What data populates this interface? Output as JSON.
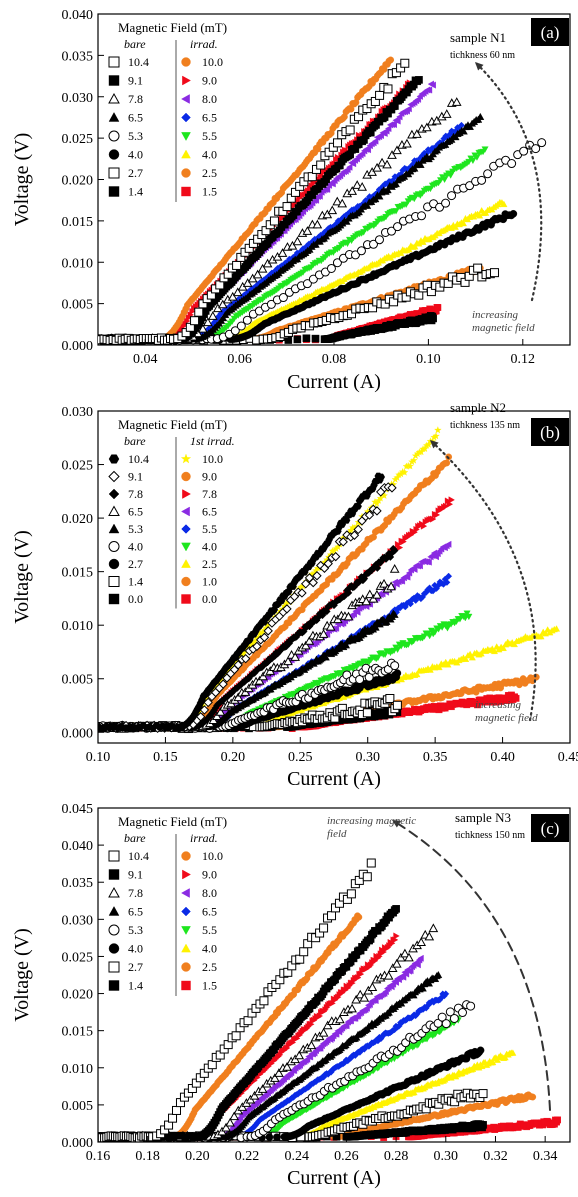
{
  "colors": {
    "orange": "#f07f1e",
    "red": "#f00a1a",
    "purple": "#8a2be2",
    "blue": "#0a2ae6",
    "green": "#1ee61e",
    "yellow": "#fff200",
    "black": "#000000"
  },
  "chart_data": [
    {
      "type": "scatter",
      "panel_label": "(a)",
      "sample": "sample N1",
      "thickness": "tichkness 60 nm",
      "annotation": "increasing\nmagnetic field",
      "xlabel": "Current (A)",
      "ylabel": "Voltage (V)",
      "xlim": [
        0.03,
        0.13
      ],
      "ylim": [
        0.0,
        0.04
      ],
      "xticks": [
        "0.04",
        "0.06",
        "0.08",
        "0.10",
        "0.12"
      ],
      "yticks": [
        "0.000",
        "0.005",
        "0.010",
        "0.015",
        "0.020",
        "0.025",
        "0.030",
        "0.035",
        "0.040"
      ],
      "legend_title": "Magnetic Field (mT)",
      "legend_col1_title": "bare",
      "legend_col2_title": "irrad.",
      "legend_position": "top-left",
      "series": [
        {
          "name": "10.4",
          "group": "bare",
          "marker": "open-square",
          "x0": 0.046,
          "x1": 0.095,
          "y1": 0.034
        },
        {
          "name": "9.1",
          "group": "bare",
          "marker": "filled-square",
          "x0": 0.047,
          "x1": 0.098,
          "y1": 0.0322
        },
        {
          "name": "7.8",
          "group": "bare",
          "marker": "open-triangle",
          "x0": 0.048,
          "x1": 0.106,
          "y1": 0.0295
        },
        {
          "name": "6.5",
          "group": "bare",
          "marker": "filled-triangle",
          "x0": 0.05,
          "x1": 0.111,
          "y1": 0.0275
        },
        {
          "name": "5.3",
          "group": "bare",
          "marker": "open-circle",
          "x0": 0.054,
          "x1": 0.124,
          "y1": 0.0245
        },
        {
          "name": "4.0",
          "group": "bare",
          "marker": "filled-circle",
          "x0": 0.058,
          "x1": 0.118,
          "y1": 0.016
        },
        {
          "name": "2.7",
          "group": "bare",
          "marker": "open-square",
          "x0": 0.065,
          "x1": 0.114,
          "y1": 0.0093
        },
        {
          "name": "1.4",
          "group": "bare",
          "marker": "filled-square",
          "x0": 0.078,
          "x1": 0.101,
          "y1": 0.0033
        },
        {
          "name": "10.0",
          "group": "irrad.",
          "marker": "circle",
          "color": "orange",
          "x0": 0.043,
          "x1": 0.092,
          "y1": 0.0345
        },
        {
          "name": "9.0",
          "group": "irrad.",
          "marker": "triangle-right",
          "color": "red",
          "x0": 0.044,
          "x1": 0.096,
          "y1": 0.0315
        },
        {
          "name": "8.0",
          "group": "irrad.",
          "marker": "triangle-left",
          "color": "purple",
          "x0": 0.046,
          "x1": 0.101,
          "y1": 0.0315
        },
        {
          "name": "6.5",
          "group": "irrad.",
          "marker": "diamond",
          "color": "blue",
          "x0": 0.049,
          "x1": 0.107,
          "y1": 0.0265
        },
        {
          "name": "5.5",
          "group": "irrad.",
          "marker": "triangle-down",
          "color": "green",
          "x0": 0.052,
          "x1": 0.112,
          "y1": 0.0235
        },
        {
          "name": "4.0",
          "group": "irrad.",
          "marker": "triangle-up",
          "color": "yellow",
          "x0": 0.056,
          "x1": 0.116,
          "y1": 0.0173
        },
        {
          "name": "2.5",
          "group": "irrad.",
          "marker": "circle",
          "color": "orange",
          "x0": 0.062,
          "x1": 0.111,
          "y1": 0.0093
        },
        {
          "name": "1.5",
          "group": "irrad.",
          "marker": "square",
          "color": "red",
          "x0": 0.078,
          "x1": 0.102,
          "y1": 0.0044
        }
      ]
    },
    {
      "type": "scatter",
      "panel_label": "(b)",
      "sample": "sample N2",
      "thickness": "tichkness 135 nm",
      "annotation": "increasing\nmagnetic field",
      "xlabel": "Current (A)",
      "ylabel": "Voltage (V)",
      "xlim": [
        0.1,
        0.45
      ],
      "ylim": [
        -0.001,
        0.03
      ],
      "xticks": [
        "0.10",
        "0.15",
        "0.20",
        "0.25",
        "0.30",
        "0.35",
        "0.40",
        "0.45"
      ],
      "yticks": [
        "0.000",
        "0.005",
        "0.010",
        "0.015",
        "0.020",
        "0.025",
        "0.030"
      ],
      "legend_title": "Magnetic Field (mT)",
      "legend_col1_title": "bare",
      "legend_col2_title": "1st irrad.",
      "legend_position": "top-left",
      "series": [
        {
          "name": "10.4",
          "group": "bare",
          "marker": "filled-hexagon",
          "x0": 0.16,
          "x1": 0.31,
          "y1": 0.024
        },
        {
          "name": "9.1",
          "group": "bare",
          "marker": "open-diamond",
          "x0": 0.165,
          "x1": 0.318,
          "y1": 0.023
        },
        {
          "name": "7.8",
          "group": "bare",
          "marker": "filled-diamond",
          "x0": 0.17,
          "x1": 0.32,
          "y1": 0.017
        },
        {
          "name": "6.5",
          "group": "bare",
          "marker": "open-triangle",
          "x0": 0.175,
          "x1": 0.32,
          "y1": 0.0145
        },
        {
          "name": "5.3",
          "group": "bare",
          "marker": "filled-triangle",
          "x0": 0.18,
          "x1": 0.32,
          "y1": 0.011
        },
        {
          "name": "4.0",
          "group": "bare",
          "marker": "open-circle",
          "x0": 0.19,
          "x1": 0.32,
          "y1": 0.0065
        },
        {
          "name": "2.7",
          "group": "bare",
          "marker": "filled-circle",
          "x0": 0.2,
          "x1": 0.322,
          "y1": 0.0053
        },
        {
          "name": "1.4",
          "group": "bare",
          "marker": "open-square",
          "x0": 0.22,
          "x1": 0.322,
          "y1": 0.0027
        },
        {
          "name": "0.0",
          "group": "bare",
          "marker": "filled-square",
          "x0": 0.24,
          "x1": 0.322,
          "y1": 0.002
        },
        {
          "name": "10.0",
          "group": "1st irrad.",
          "marker": "star",
          "color": "yellow",
          "x0": 0.16,
          "x1": 0.352,
          "y1": 0.028
        },
        {
          "name": "9.0",
          "group": "1st irrad.",
          "marker": "circle",
          "color": "orange",
          "x0": 0.165,
          "x1": 0.36,
          "y1": 0.0255
        },
        {
          "name": "7.8",
          "group": "1st irrad.",
          "marker": "triangle-right",
          "color": "red",
          "x0": 0.17,
          "x1": 0.362,
          "y1": 0.0217
        },
        {
          "name": "6.5",
          "group": "1st irrad.",
          "marker": "triangle-left",
          "color": "purple",
          "x0": 0.175,
          "x1": 0.36,
          "y1": 0.0175
        },
        {
          "name": "5.5",
          "group": "1st irrad.",
          "marker": "diamond",
          "color": "blue",
          "x0": 0.18,
          "x1": 0.36,
          "y1": 0.0143
        },
        {
          "name": "4.0",
          "group": "1st irrad.",
          "marker": "triangle-down",
          "color": "green",
          "x0": 0.19,
          "x1": 0.375,
          "y1": 0.0109
        },
        {
          "name": "2.5",
          "group": "1st irrad.",
          "marker": "triangle-up",
          "color": "yellow",
          "x0": 0.21,
          "x1": 0.44,
          "y1": 0.0096
        },
        {
          "name": "1.0",
          "group": "1st irrad.",
          "marker": "circle",
          "color": "orange",
          "x0": 0.23,
          "x1": 0.425,
          "y1": 0.005
        },
        {
          "name": "0.0",
          "group": "1st irrad.",
          "marker": "square",
          "color": "red",
          "x0": 0.25,
          "x1": 0.41,
          "y1": 0.0033
        }
      ]
    },
    {
      "type": "scatter",
      "panel_label": "(c)",
      "sample": "sample N3",
      "thickness": "tichkness 150 nm",
      "annotation": "increasing magnetic\nfield",
      "xlabel": "Current (A)",
      "ylabel": "Voltage (V)",
      "xlim": [
        0.16,
        0.35
      ],
      "ylim": [
        0.0,
        0.045
      ],
      "xticks": [
        "0.16",
        "0.18",
        "0.20",
        "0.22",
        "0.24",
        "0.26",
        "0.28",
        "0.30",
        "0.32",
        "0.34"
      ],
      "yticks": [
        "0.000",
        "0.005",
        "0.010",
        "0.015",
        "0.020",
        "0.025",
        "0.030",
        "0.035",
        "0.040",
        "0.045"
      ],
      "legend_title": "Magnetic Field (mT)",
      "legend_col1_title": "bare",
      "legend_col2_title": "irrad.",
      "legend_position": "top-left",
      "series": [
        {
          "name": "10.4",
          "group": "bare",
          "marker": "open-square",
          "x0": 0.182,
          "x1": 0.27,
          "y1": 0.037
        },
        {
          "name": "9.1",
          "group": "bare",
          "marker": "filled-square",
          "x0": 0.2,
          "x1": 0.28,
          "y1": 0.0315
        },
        {
          "name": "7.8",
          "group": "bare",
          "marker": "open-triangle",
          "x0": 0.205,
          "x1": 0.295,
          "y1": 0.0285
        },
        {
          "name": "6.5",
          "group": "bare",
          "marker": "filled-triangle",
          "x0": 0.21,
          "x1": 0.297,
          "y1": 0.0225
        },
        {
          "name": "5.3",
          "group": "bare",
          "marker": "open-circle",
          "x0": 0.22,
          "x1": 0.31,
          "y1": 0.0185
        },
        {
          "name": "4.0",
          "group": "bare",
          "marker": "filled-circle",
          "x0": 0.235,
          "x1": 0.314,
          "y1": 0.0123
        },
        {
          "name": "2.7",
          "group": "bare",
          "marker": "open-square",
          "x0": 0.245,
          "x1": 0.315,
          "y1": 0.0068
        },
        {
          "name": "1.4",
          "group": "bare",
          "marker": "filled-square",
          "x0": 0.26,
          "x1": 0.315,
          "y1": 0.0022
        },
        {
          "name": "10.0",
          "group": "irrad.",
          "marker": "circle",
          "color": "orange",
          "x0": 0.19,
          "x1": 0.265,
          "y1": 0.0305
        },
        {
          "name": "9.0",
          "group": "irrad.",
          "marker": "triangle-right",
          "color": "red",
          "x0": 0.2,
          "x1": 0.28,
          "y1": 0.0275
        },
        {
          "name": "8.0",
          "group": "irrad.",
          "marker": "triangle-left",
          "color": "purple",
          "x0": 0.208,
          "x1": 0.29,
          "y1": 0.0245
        },
        {
          "name": "6.5",
          "group": "irrad.",
          "marker": "diamond",
          "color": "blue",
          "x0": 0.215,
          "x1": 0.3,
          "y1": 0.02
        },
        {
          "name": "5.5",
          "group": "irrad.",
          "marker": "triangle-down",
          "color": "green",
          "x0": 0.225,
          "x1": 0.305,
          "y1": 0.0165
        },
        {
          "name": "4.0",
          "group": "irrad.",
          "marker": "triangle-up",
          "color": "yellow",
          "x0": 0.24,
          "x1": 0.327,
          "y1": 0.012
        },
        {
          "name": "2.5",
          "group": "irrad.",
          "marker": "circle",
          "color": "orange",
          "x0": 0.255,
          "x1": 0.335,
          "y1": 0.0063
        },
        {
          "name": "1.5",
          "group": "irrad.",
          "marker": "square",
          "color": "red",
          "x0": 0.285,
          "x1": 0.345,
          "y1": 0.0027
        }
      ]
    }
  ]
}
